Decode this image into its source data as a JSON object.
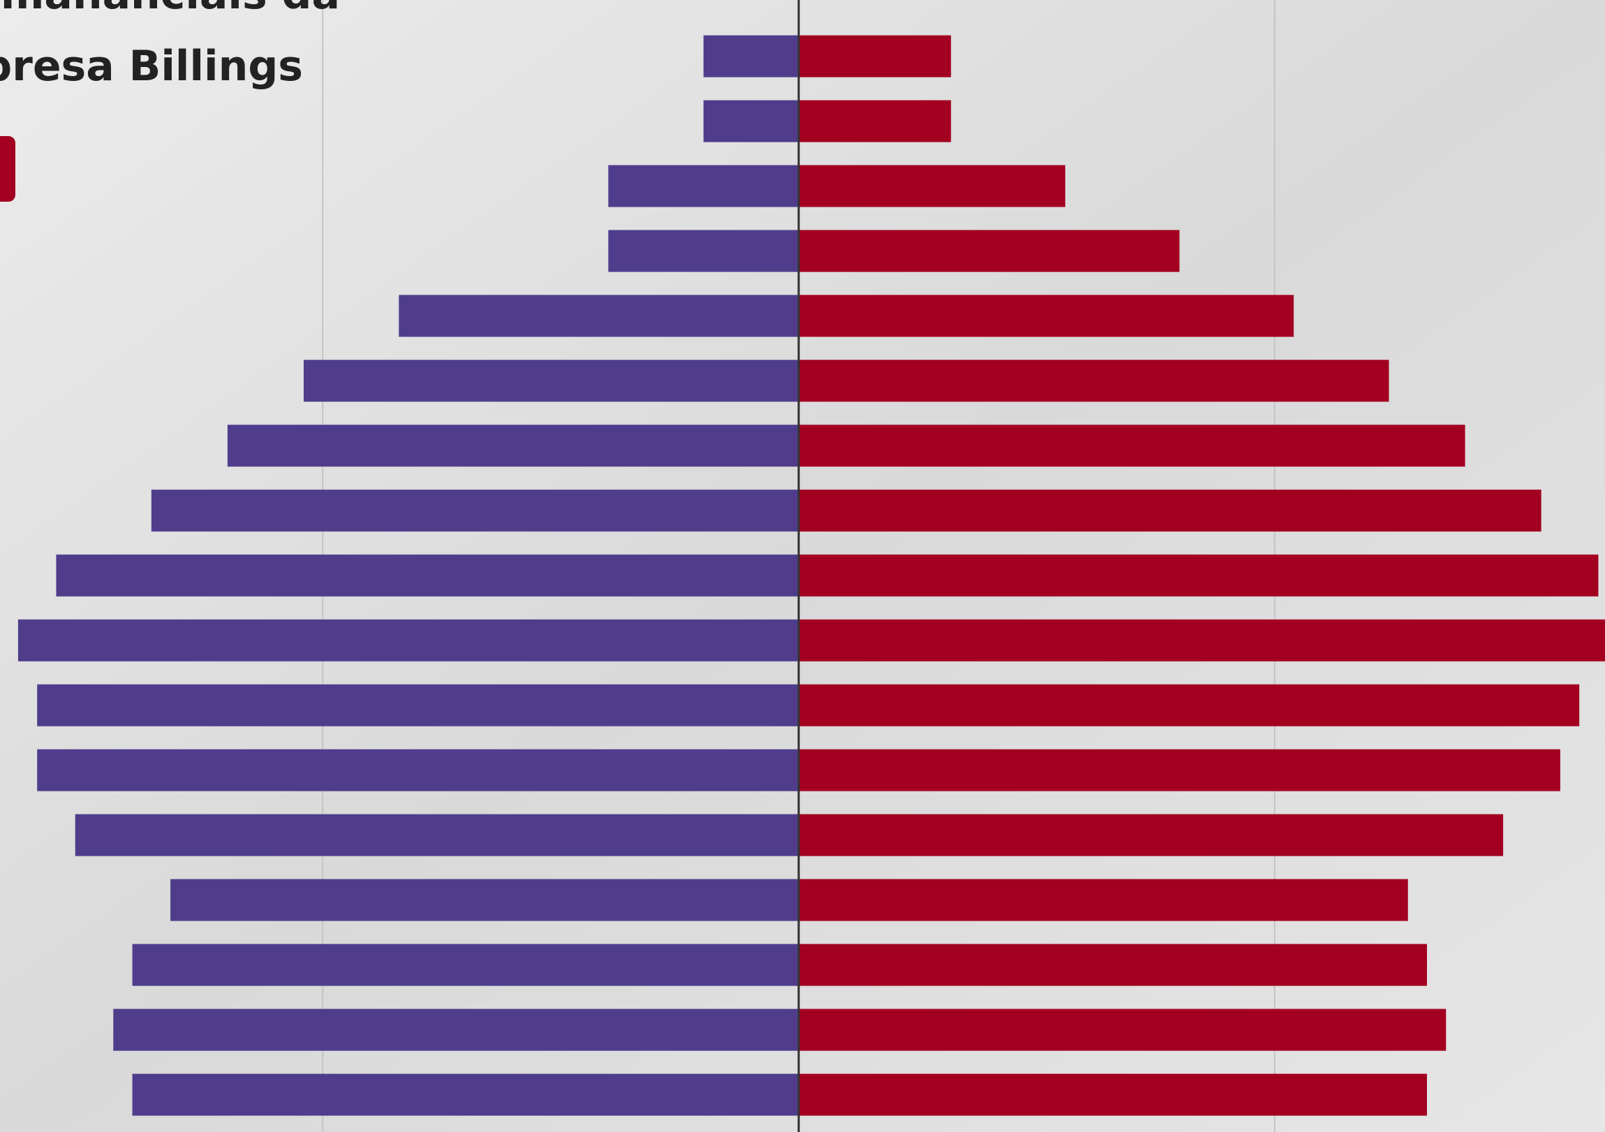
{
  "chart_data": {
    "type": "pyramid",
    "title_lines": [
      "mananciais da",
      "presa Billings"
    ],
    "categories": [
      null,
      null,
      null,
      null,
      null,
      null,
      null,
      null,
      null,
      null,
      null,
      null,
      null,
      null,
      null,
      null,
      null
    ],
    "series": [
      {
        "color": "#4f3d8c",
        "values": [
          -1.0,
          -1.0,
          -2.0,
          -2.0,
          -4.2,
          -5.2,
          -6.0,
          -6.8,
          -7.8,
          -8.2,
          -8.0,
          -8.0,
          -7.6,
          -6.6,
          -7.0,
          -7.2,
          -7.0
        ]
      },
      {
        "color": "#a30021",
        "values": [
          1.6,
          1.6,
          2.8,
          4.0,
          5.2,
          6.2,
          7.0,
          7.8,
          8.4,
          8.6,
          8.2,
          8.0,
          7.4,
          6.4,
          6.6,
          6.8,
          6.6
        ]
      }
    ],
    "xlim": [
      -8.39,
      8.47
    ],
    "xticks": [
      -5,
      0,
      5
    ],
    "grid": true
  }
}
